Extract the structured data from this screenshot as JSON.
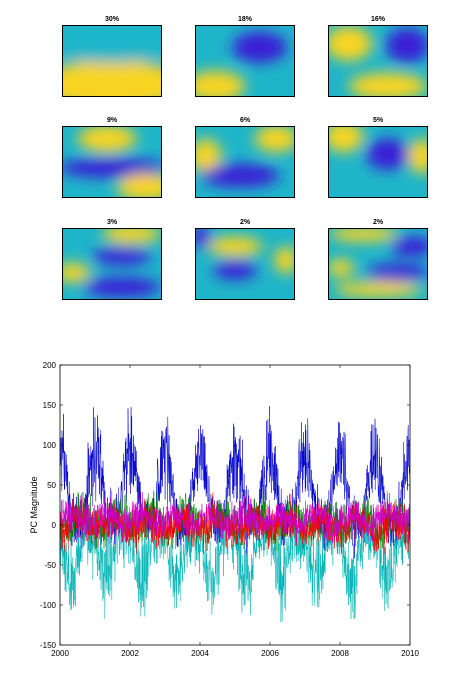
{
  "maps": [
    {
      "label": "30%"
    },
    {
      "label": "18%"
    },
    {
      "label": "16%"
    },
    {
      "label": "9%"
    },
    {
      "label": "6%"
    },
    {
      "label": "5%"
    },
    {
      "label": "3%"
    },
    {
      "label": "2%"
    },
    {
      "label": "2%"
    }
  ],
  "chart_data": {
    "type": "line",
    "title": "",
    "xlabel": "",
    "ylabel": "PC Magnitude",
    "xlim": [
      2000,
      2010
    ],
    "ylim": [
      -150,
      200
    ],
    "x_ticks": [
      "2000",
      "2002",
      "2004",
      "2006",
      "2008",
      "2010"
    ],
    "y_ticks": [
      "-150",
      "-100",
      "-50",
      "0",
      "50",
      "100",
      "150",
      "200"
    ],
    "grid": false,
    "series": [
      {
        "color": "#0000cc",
        "mean": 35,
        "amplitude": 55,
        "noise": 25
      },
      {
        "color": "#00b3b3",
        "mean": -30,
        "amplitude": 35,
        "noise": 25
      },
      {
        "color": "#008000",
        "mean": 5,
        "amplitude": 10,
        "noise": 18
      },
      {
        "color": "#ff0000",
        "mean": 0,
        "amplitude": 8,
        "noise": 18
      },
      {
        "color": "#cc00cc",
        "mean": 8,
        "amplitude": 6,
        "noise": 15
      }
    ]
  },
  "colormap": {
    "low": "#3a1fd6",
    "mid": "#1fb5c9",
    "high": "#f8d420"
  }
}
